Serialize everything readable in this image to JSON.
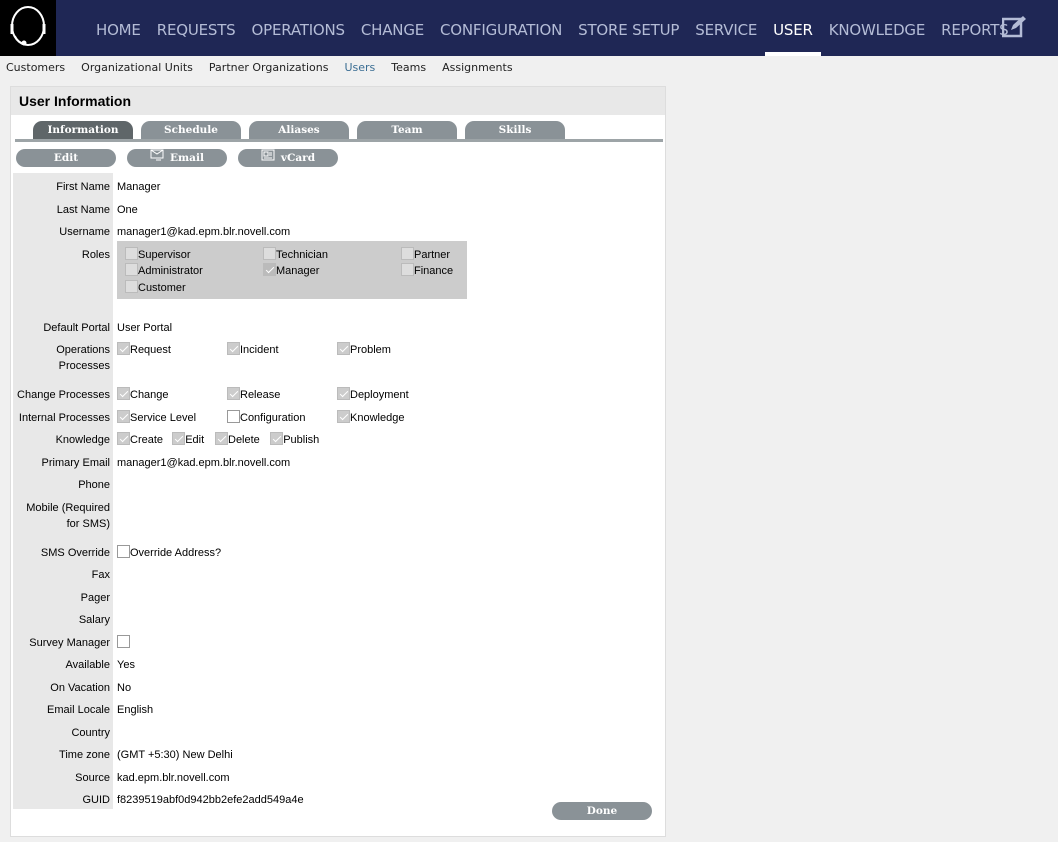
{
  "nav": {
    "items": [
      "HOME",
      "REQUESTS",
      "OPERATIONS",
      "CHANGE",
      "CONFIGURATION",
      "STORE SETUP",
      "SERVICE",
      "USER",
      "KNOWLEDGE",
      "REPORTS"
    ],
    "active": 7
  },
  "subnav": {
    "items": [
      "Customers",
      "Organizational Units",
      "Partner Organizations",
      "Users",
      "Teams",
      "Assignments"
    ],
    "active": 3
  },
  "panel": {
    "title": "User Information"
  },
  "tabs": {
    "items": [
      "Information",
      "Schedule",
      "Aliases",
      "Team",
      "Skills"
    ],
    "active": 0
  },
  "actions": {
    "edit": "Edit",
    "email": "Email",
    "vcard": "vCard"
  },
  "fields": [
    {
      "label": "First Name",
      "value": "Manager"
    },
    {
      "label": "Last Name",
      "value": "One"
    },
    {
      "label": "Username",
      "value": "manager1@kad.epm.blr.novell.com"
    },
    {
      "label": "Roles",
      "type": "roles",
      "options": [
        {
          "label": "Supervisor",
          "checked": false
        },
        {
          "label": "Technician",
          "checked": false
        },
        {
          "label": "Partner",
          "checked": false
        },
        {
          "label": "Administrator",
          "checked": false
        },
        {
          "label": "Manager",
          "checked": true
        },
        {
          "label": "Finance",
          "checked": false
        },
        {
          "label": "Customer",
          "checked": false
        }
      ]
    },
    {
      "label": "Default Portal",
      "value": "User Portal"
    },
    {
      "label": "Operations Processes",
      "type": "checks",
      "options": [
        {
          "label": "Request",
          "checked": true
        },
        {
          "label": "Incident",
          "checked": true
        },
        {
          "label": "Problem",
          "checked": true
        }
      ]
    },
    {
      "label": "Change Processes",
      "type": "checks",
      "options": [
        {
          "label": "Change",
          "checked": true
        },
        {
          "label": "Release",
          "checked": true
        },
        {
          "label": "Deployment",
          "checked": true
        }
      ]
    },
    {
      "label": "Internal Processes",
      "type": "checks",
      "options": [
        {
          "label": "Service Level",
          "checked": true
        },
        {
          "label": "Configuration",
          "checked": false
        },
        {
          "label": "Knowledge",
          "checked": true
        }
      ]
    },
    {
      "label": "Knowledge",
      "type": "inline",
      "options": [
        {
          "label": "Create",
          "checked": true
        },
        {
          "label": "Edit",
          "checked": true
        },
        {
          "label": "Delete",
          "checked": true
        },
        {
          "label": "Publish",
          "checked": true
        }
      ]
    },
    {
      "label": "Primary Email",
      "value": "manager1@kad.epm.blr.novell.com"
    },
    {
      "label": "Phone",
      "value": ""
    },
    {
      "label": "Mobile (Required for SMS)",
      "value": ""
    },
    {
      "label": "SMS Override",
      "type": "inline",
      "options": [
        {
          "label": "Override Address?",
          "checked": false
        }
      ]
    },
    {
      "label": "Fax",
      "value": ""
    },
    {
      "label": "Pager",
      "value": ""
    },
    {
      "label": "Salary",
      "value": ""
    },
    {
      "label": "Survey Manager",
      "type": "inline",
      "options": [
        {
          "label": "",
          "checked": false
        }
      ]
    },
    {
      "label": "Available",
      "value": "Yes"
    },
    {
      "label": "On Vacation",
      "value": "No"
    },
    {
      "label": "Email Locale",
      "value": "English"
    },
    {
      "label": "Country",
      "value": ""
    },
    {
      "label": "Time zone",
      "value": "(GMT +5:30) New Delhi"
    },
    {
      "label": "Source",
      "value": "kad.epm.blr.novell.com"
    },
    {
      "label": "GUID",
      "value": "f8239519abf0d942bb2efe2add549a4e"
    }
  ],
  "done": "Done"
}
